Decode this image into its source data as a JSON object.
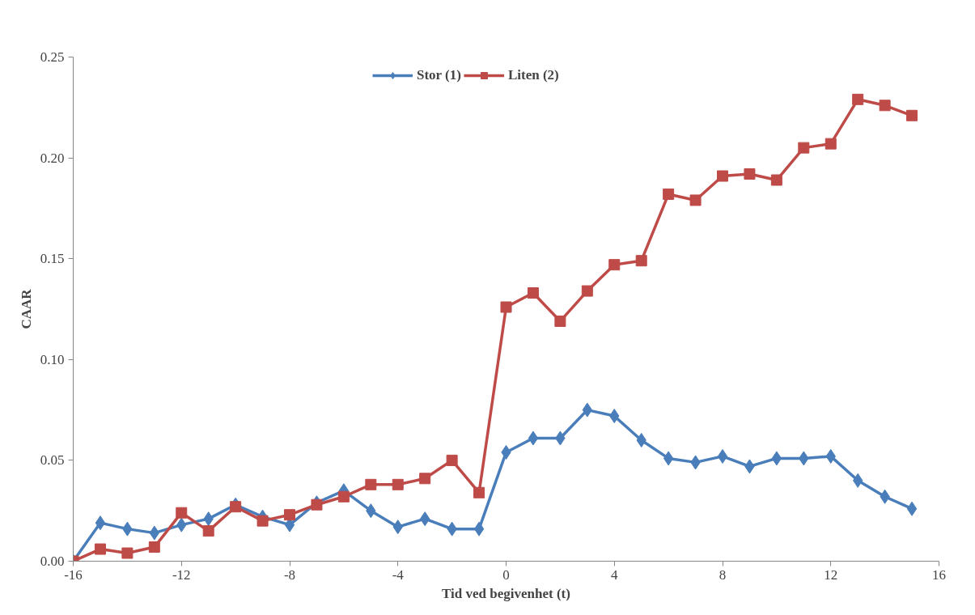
{
  "chart_data": {
    "type": "line",
    "xlabel": "Tid ved begivenhet (t)",
    "ylabel": "CAAR",
    "x": [
      -16,
      -15,
      -14,
      -13,
      -12,
      -11,
      -10,
      -9,
      -8,
      -7,
      -6,
      -5,
      -4,
      -3,
      -2,
      -1,
      0,
      1,
      2,
      3,
      4,
      5,
      6,
      7,
      8,
      9,
      10,
      11,
      12,
      13,
      14,
      15
    ],
    "series": [
      {
        "name": "Stor (1)",
        "color": "#4a7ebb",
        "marker": "diamond",
        "values": [
          0,
          0.019,
          0.016,
          0.014,
          0.018,
          0.021,
          0.028,
          0.022,
          0.018,
          0.029,
          0.035,
          0.025,
          0.017,
          0.021,
          0.016,
          0.016,
          0.054,
          0.061,
          0.061,
          0.075,
          0.072,
          0.06,
          0.051,
          0.049,
          0.052,
          0.047,
          0.051,
          0.051,
          0.052,
          0.04,
          0.032,
          0.026
        ]
      },
      {
        "name": "Liten (2)",
        "color": "#be4b48",
        "marker": "square",
        "values": [
          0,
          0.006,
          0.004,
          0.007,
          0.024,
          0.015,
          0.027,
          0.02,
          0.023,
          0.028,
          0.032,
          0.038,
          0.038,
          0.041,
          0.05,
          0.034,
          0.126,
          0.133,
          0.119,
          0.134,
          0.147,
          0.149,
          0.182,
          0.179,
          0.191,
          0.192,
          0.189,
          0.205,
          0.207,
          0.229,
          0.226,
          0.221
        ]
      }
    ],
    "xlim": [
      -16,
      16
    ],
    "xticks": [
      -16,
      -12,
      -8,
      -4,
      0,
      4,
      8,
      12,
      16
    ],
    "ylim": [
      0,
      0.25
    ],
    "yticks": [
      {
        "value": 0,
        "label": "0.00"
      },
      {
        "value": 0.05,
        "label": "0.05"
      },
      {
        "value": 0.1,
        "label": "0.10"
      },
      {
        "value": 0.15,
        "label": "0.15"
      },
      {
        "value": 0.2,
        "label": "0.20"
      },
      {
        "value": 0.25,
        "label": "0.25"
      }
    ],
    "grid": false,
    "legend": "top",
    "line_style": "solid"
  }
}
